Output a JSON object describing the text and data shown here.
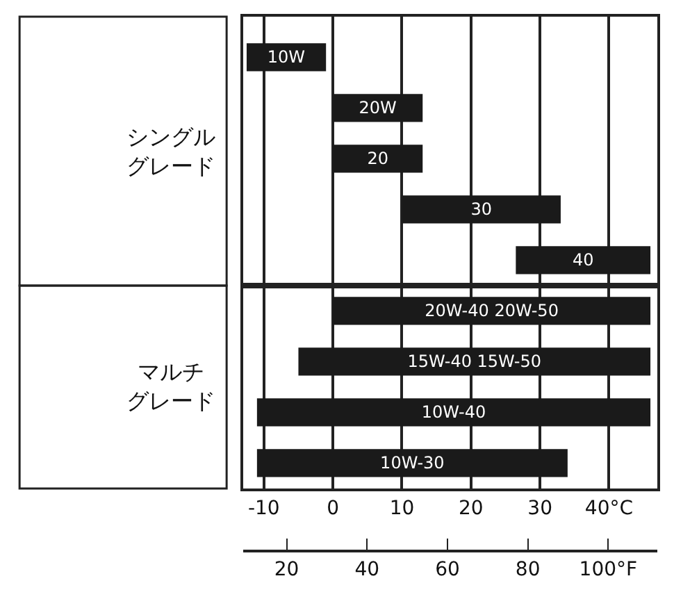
{
  "chart_data": [
    {
      "type": "bar",
      "orientation": "horizontal",
      "categories": [
        "10W",
        "20W",
        "20",
        "30",
        "40"
      ],
      "base": [
        -12.5,
        0,
        0,
        10,
        26.5
      ],
      "values": [
        11.5,
        13,
        13,
        23,
        19.5
      ],
      "color": "#1a1a1a",
      "xlim": [
        -13,
        47
      ],
      "xticks": [
        -10,
        0,
        10,
        20,
        30,
        40
      ],
      "tick_labels": false,
      "annotations": [
        "シングルグレード"
      ],
      "grid": "x"
    },
    {
      "type": "bar",
      "orientation": "horizontal",
      "categories": [
        "20W-40 20W-50",
        "15W-40 15W-50",
        "10W-40",
        "10W-30"
      ],
      "base": [
        0,
        -5,
        -11,
        -11
      ],
      "values": [
        46,
        51,
        57,
        45
      ],
      "color": "#1a1a1a",
      "xlim": [
        -13,
        47
      ],
      "xticks": [
        {
          "value": -10,
          "label": "-10"
        },
        0,
        10,
        20,
        30,
        {
          "value": 40,
          "label": "40°C"
        }
      ],
      "x2lim": [
        9.2,
        112.2
      ],
      "x2ticks": [
        20,
        40,
        60,
        80,
        {
          "value": 100,
          "label": "100°F"
        }
      ],
      "annotations": [
        "マルチグレード"
      ],
      "grid": "x"
    }
  ]
}
